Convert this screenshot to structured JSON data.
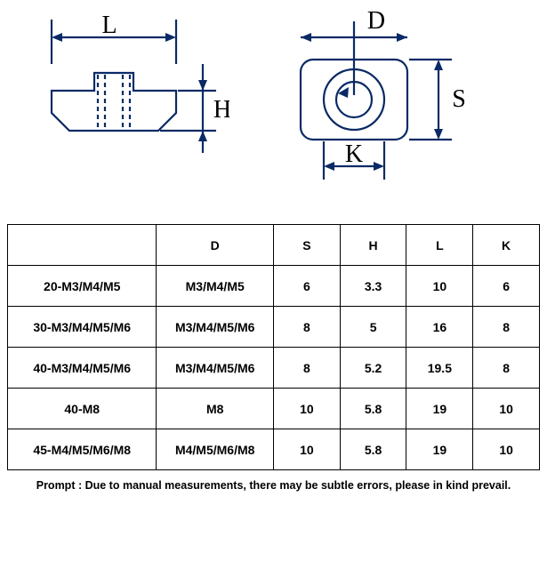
{
  "diagram": {
    "labels": {
      "L": "L",
      "H": "H",
      "D": "D",
      "S": "S",
      "K": "K"
    },
    "stroke": "#0a2a66",
    "stroke_width": 2.2
  },
  "table": {
    "columns": [
      "",
      "D",
      "S",
      "H",
      "L",
      "K"
    ],
    "rows": [
      [
        "20-M3/M4/M5",
        "M3/M4/M5",
        "6",
        "3.3",
        "10",
        "6"
      ],
      [
        "30-M3/M4/M5/M6",
        "M3/M4/M5/M6",
        "8",
        "5",
        "16",
        "8"
      ],
      [
        "40-M3/M4/M5/M6",
        "M3/M4/M5/M6",
        "8",
        "5.2",
        "19.5",
        "8"
      ],
      [
        "40-M8",
        "M8",
        "10",
        "5.8",
        "19",
        "10"
      ],
      [
        "45-M4/M5/M6/M8",
        "M4/M5/M6/M8",
        "10",
        "5.8",
        "19",
        "10"
      ]
    ]
  },
  "footnote": "Prompt : Due to manual measurements, there may be subtle errors, please in kind prevail."
}
